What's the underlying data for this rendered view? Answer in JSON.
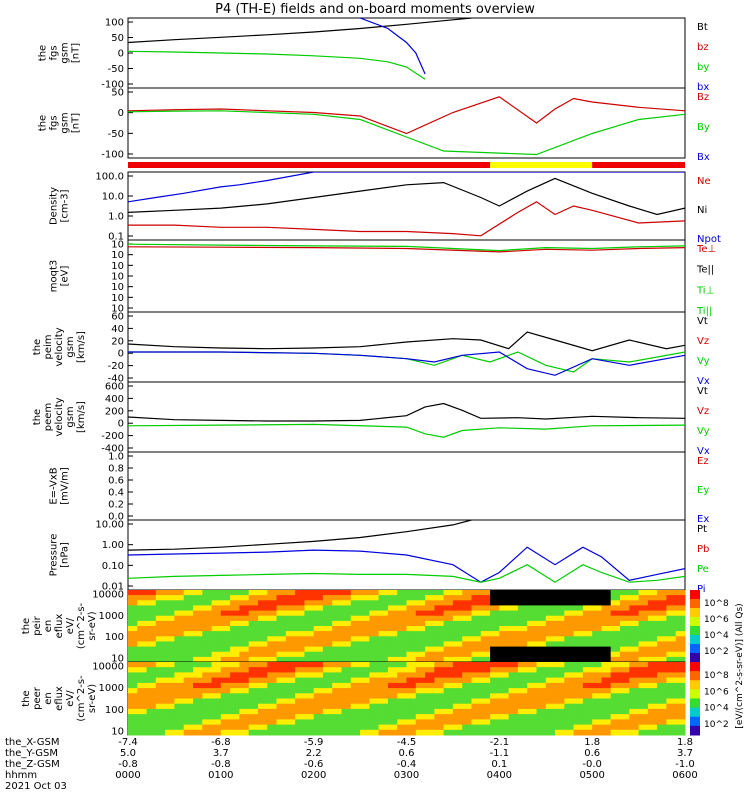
{
  "title": "P4 (TH-E) fields and on-board moments overview",
  "colors": {
    "black": "#000000",
    "red": "#cc0000",
    "green": "#00cc00",
    "blue": "#0000dd",
    "yellow": "#ffff00",
    "barred": "#ee0000"
  },
  "chart_data": [
    {
      "type": "line",
      "id": "fgs-gsm",
      "ylabel": [
        "the",
        "fgs",
        "gsm",
        "[nT]"
      ],
      "yticks": [
        "100",
        "50",
        "0",
        "-50",
        "-100"
      ],
      "ylim": [
        -100,
        100
      ],
      "legend": [
        {
          "name": "Bt",
          "color": "#000000"
        },
        {
          "name": "bz",
          "color": "#cc0000"
        },
        {
          "name": "by",
          "color": "#00cc00"
        },
        {
          "name": "bx",
          "color": "#0000dd"
        }
      ],
      "series": [
        {
          "name": "Bt",
          "x": [
            0,
            0.5,
            1,
            1.5,
            2,
            2.5,
            3,
            3.5,
            3.7
          ],
          "y": [
            30,
            38,
            45,
            52,
            60,
            70,
            82,
            95,
            100
          ]
        },
        {
          "name": "by",
          "x": [
            0,
            0.5,
            1,
            1.5,
            2,
            2.5,
            2.8,
            3.0,
            3.2
          ],
          "y": [
            5,
            3,
            0,
            -3,
            -8,
            -15,
            -25,
            -40,
            -75
          ]
        },
        {
          "name": "bx",
          "x": [
            2.5,
            2.8,
            3.0,
            3.1,
            3.2
          ],
          "y": [
            100,
            70,
            30,
            0,
            -60
          ]
        }
      ]
    },
    {
      "type": "line",
      "id": "fgs-gse",
      "ylabel": [
        "the",
        "fgs",
        "gsm",
        "[nT]"
      ],
      "yticks": [
        "50",
        "0",
        "-50",
        "-100"
      ],
      "ylim": [
        -130,
        70
      ],
      "legend": [
        {
          "name": "Bz",
          "color": "#cc0000"
        },
        {
          "name": "By",
          "color": "#00cc00"
        },
        {
          "name": "Bx",
          "color": "#0000dd"
        }
      ],
      "series": [
        {
          "name": "Bz",
          "x": [
            0,
            0.5,
            1,
            1.5,
            2,
            2.5,
            3,
            3.5,
            4,
            4.4,
            4.6,
            4.8,
            5,
            5.5,
            6
          ],
          "y": [
            5,
            8,
            10,
            5,
            0,
            -10,
            -60,
            0,
            45,
            -30,
            10,
            40,
            30,
            15,
            5
          ]
        },
        {
          "name": "By",
          "x": [
            0,
            0.5,
            1,
            1.5,
            2,
            2.5,
            3,
            3.4,
            4.4,
            5,
            5.5,
            6
          ],
          "y": [
            2,
            4,
            5,
            0,
            -5,
            -20,
            -70,
            -110,
            -120,
            -60,
            -20,
            -5
          ]
        }
      ]
    },
    {
      "type": "line",
      "id": "density",
      "ylabel": [
        "Density",
        "[cm-3]"
      ],
      "yticks": [
        "100.0",
        "10.0",
        "1.0",
        "0.1"
      ],
      "ylim": [
        -1,
        2.2
      ],
      "log": true,
      "legend": [
        {
          "name": "Ne",
          "color": "#cc0000"
        },
        {
          "name": "Ni",
          "color": "#000000"
        },
        {
          "name": "Npot",
          "color": "#0000dd"
        }
      ],
      "series": [
        {
          "name": "Ni",
          "x": [
            0,
            0.5,
            1,
            1.5,
            2,
            2.5,
            3,
            3.4,
            3.8,
            4,
            4.3,
            4.6,
            5,
            5.4,
            5.7,
            6
          ],
          "y": [
            0.3,
            0.4,
            0.5,
            0.7,
            1.0,
            1.3,
            1.6,
            1.7,
            1.0,
            0.6,
            1.3,
            1.9,
            1.2,
            0.6,
            0.2,
            0.5
          ]
        },
        {
          "name": "Ne",
          "x": [
            0,
            0.5,
            1,
            1.5,
            2,
            2.5,
            3,
            3.5,
            3.8,
            4.2,
            4.4,
            4.6,
            4.8,
            5,
            5.5,
            6
          ],
          "y": [
            -0.3,
            -0.3,
            -0.4,
            -0.4,
            -0.5,
            -0.6,
            -0.6,
            -0.7,
            -0.8,
            0.3,
            0.8,
            0.2,
            0.6,
            0.4,
            -0.2,
            -0.1
          ]
        },
        {
          "name": "Npot",
          "x": [
            0,
            0.3,
            0.6,
            1,
            1.2,
            1.5,
            2,
            6
          ],
          "y": [
            0.8,
            1.0,
            1.2,
            1.5,
            1.6,
            1.8,
            2.2,
            2.2
          ]
        }
      ]
    },
    {
      "type": "line",
      "id": "temperature",
      "ylabel": [
        "moqt3",
        "[eV]"
      ],
      "yticks": [
        "10",
        "10",
        "10",
        "10",
        "10",
        "10",
        "10"
      ],
      "ylim": [
        -14,
        3
      ],
      "legend": [
        {
          "name": "Te⊥",
          "color": "#cc0000"
        },
        {
          "name": "Te||",
          "color": "#000000"
        },
        {
          "name": "Ti⊥",
          "color": "#00cc00"
        },
        {
          "name": "Ti||",
          "color": "#00cc00"
        }
      ],
      "series": [
        {
          "name": "Ti",
          "x": [
            0,
            1,
            2,
            3,
            4,
            4.5,
            5,
            5.5,
            6
          ],
          "y": [
            2,
            1.8,
            1.6,
            1.5,
            0.5,
            1.2,
            1.0,
            1.4,
            1.6
          ]
        },
        {
          "name": "Te",
          "x": [
            0,
            1,
            2,
            3,
            4,
            4.5,
            5,
            5.5,
            6
          ],
          "y": [
            1.4,
            1.3,
            1.2,
            1.0,
            0.2,
            0.8,
            0.6,
            1.0,
            1.2
          ]
        }
      ]
    },
    {
      "type": "line",
      "id": "peim-velocity",
      "ylabel": [
        "the",
        "peim",
        "velocity",
        "gsm",
        "[km/s]"
      ],
      "yticks": [
        "60",
        "40",
        "20",
        "0",
        "-20",
        "-40"
      ],
      "ylim": [
        -45,
        60
      ],
      "legend": [
        {
          "name": "Vt",
          "color": "#000000"
        },
        {
          "name": "Vz",
          "color": "#cc0000"
        },
        {
          "name": "Vy",
          "color": "#00cc00"
        },
        {
          "name": "Vx",
          "color": "#0000dd"
        }
      ],
      "series": [
        {
          "name": "Vt",
          "x": [
            0,
            0.5,
            1,
            1.5,
            2,
            2.5,
            3,
            3.5,
            3.8,
            4.1,
            4.3,
            4.6,
            5,
            5.4,
            5.8,
            6
          ],
          "y": [
            12,
            8,
            6,
            5,
            6,
            8,
            15,
            20,
            18,
            5,
            30,
            18,
            2,
            18,
            5,
            10
          ]
        },
        {
          "name": "Vy",
          "x": [
            0,
            1,
            2,
            2.5,
            3,
            3.3,
            3.6,
            3.9,
            4.2,
            4.5,
            4.8,
            5,
            5.4,
            6
          ],
          "y": [
            0,
            0,
            -2,
            -5,
            -10,
            -20,
            -5,
            -15,
            0,
            -20,
            -30,
            -10,
            -15,
            0
          ]
        },
        {
          "name": "Vx",
          "x": [
            0,
            1,
            2,
            2.5,
            3,
            3.3,
            3.6,
            4,
            4.3,
            4.6,
            5,
            5.4,
            6
          ],
          "y": [
            0,
            0,
            -2,
            -5,
            -10,
            -15,
            -5,
            0,
            -25,
            -35,
            -10,
            -20,
            -5
          ]
        }
      ]
    },
    {
      "type": "line",
      "id": "peem-velocity",
      "ylabel": [
        "the",
        "peem",
        "velocity",
        "gsm",
        "[km/s]"
      ],
      "yticks": [
        "600",
        "400",
        "200",
        "0",
        "-200",
        "-400"
      ],
      "ylim": [
        -420,
        620
      ],
      "legend": [
        {
          "name": "Vt",
          "color": "#000000"
        },
        {
          "name": "Vz",
          "color": "#cc0000"
        },
        {
          "name": "Vy",
          "color": "#00cc00"
        },
        {
          "name": "Vx",
          "color": "#0000dd"
        }
      ],
      "series": [
        {
          "name": "Vt",
          "x": [
            0,
            0.5,
            1,
            1.5,
            2,
            2.5,
            3,
            3.2,
            3.4,
            3.6,
            3.8,
            4.2,
            4.5,
            5,
            5.5,
            6
          ],
          "y": [
            100,
            60,
            50,
            40,
            40,
            50,
            120,
            250,
            300,
            200,
            80,
            90,
            70,
            110,
            90,
            80
          ]
        },
        {
          "name": "Vy",
          "x": [
            0,
            1,
            2,
            3,
            3.2,
            3.4,
            3.6,
            4,
            4.5,
            5,
            6
          ],
          "y": [
            -30,
            -20,
            -10,
            -50,
            -150,
            -200,
            -100,
            -60,
            -80,
            -30,
            -20
          ]
        }
      ]
    },
    {
      "type": "line",
      "id": "efield",
      "ylabel": [
        "E=-VxB",
        "[mV/m]"
      ],
      "yticks": [
        "1.0",
        "0.8",
        "0.6",
        "0.4",
        "0.2",
        "0.0"
      ],
      "ylim": [
        0,
        1
      ],
      "legend": [
        {
          "name": "Ez",
          "color": "#cc0000"
        },
        {
          "name": "Ey",
          "color": "#00cc00"
        },
        {
          "name": "Ex",
          "color": "#0000dd"
        }
      ],
      "series": []
    },
    {
      "type": "line",
      "id": "pressure",
      "ylabel": [
        "Pressure",
        "[nPa]"
      ],
      "yticks": [
        "10.00",
        "1.00",
        "0.10",
        "0.01"
      ],
      "ylim": [
        -2.3,
        1.3
      ],
      "log": true,
      "legend": [
        {
          "name": "Pt",
          "color": "#000000"
        },
        {
          "name": "Pb",
          "color": "#cc0000"
        },
        {
          "name": "Pe",
          "color": "#00cc00"
        },
        {
          "name": "Pi",
          "color": "#0000dd"
        }
      ],
      "series": [
        {
          "name": "Pt",
          "x": [
            0,
            0.5,
            1,
            1.5,
            2,
            2.5,
            3,
            3.5,
            3.7
          ],
          "y": [
            -0.25,
            -0.2,
            -0.1,
            0.05,
            0.2,
            0.4,
            0.7,
            1.05,
            1.3
          ]
        },
        {
          "name": "Pi",
          "x": [
            0,
            0.5,
            1,
            1.5,
            2,
            2.5,
            3,
            3.5,
            3.8,
            4,
            4.3,
            4.6,
            4.9,
            5.1,
            5.4,
            5.7,
            6
          ],
          "y": [
            -0.5,
            -0.45,
            -0.4,
            -0.35,
            -0.25,
            -0.3,
            -0.5,
            -1.0,
            -1.9,
            -1.4,
            -0.1,
            -1.0,
            -0.1,
            -0.6,
            -1.8,
            -1.5,
            -1.2
          ]
        },
        {
          "name": "Pe",
          "x": [
            0,
            0.5,
            1,
            1.5,
            2,
            2.5,
            3,
            3.5,
            3.8,
            4,
            4.3,
            4.6,
            4.9,
            5.1,
            5.4,
            5.7,
            6
          ],
          "y": [
            -1.7,
            -1.6,
            -1.55,
            -1.5,
            -1.45,
            -1.5,
            -1.5,
            -1.6,
            -1.9,
            -1.7,
            -1.0,
            -1.9,
            -1.0,
            -1.4,
            -1.9,
            -1.8,
            -1.6
          ]
        }
      ]
    },
    {
      "type": "heatmap",
      "id": "peir-en-eflux",
      "ylabel": [
        "the",
        "peir",
        "en",
        "eflux",
        "eV/",
        "(cm^2-s-",
        "sr-eV)"
      ],
      "yticks": [
        "10000",
        "1000",
        "100",
        "10"
      ],
      "colorbar": {
        "label": "[eV/(cm^2-s-sr-eV)] (All Qs)",
        "ticks": [
          "10^8",
          "10^6",
          "10^4",
          "10^2"
        ]
      }
    },
    {
      "type": "heatmap",
      "id": "peer-en-eflux",
      "ylabel": [
        "the",
        "peer",
        "en",
        "eflux",
        "eV/",
        "(cm^2-s-",
        "sr-eV)"
      ],
      "yticks": [
        "10000",
        "1000",
        "100",
        "10"
      ],
      "colorbar": {
        "ticks": [
          "10^8",
          "10^6",
          "10^4",
          "10^2"
        ]
      }
    }
  ],
  "xaxis": {
    "rows": [
      {
        "label": "the_X-GSM",
        "values": [
          "-7.4",
          "-6.8",
          "-5.9",
          "-4.5",
          "-2.1",
          "1.8",
          "1.8"
        ]
      },
      {
        "label": "the_Y-GSM",
        "values": [
          "5.0",
          "3.7",
          "2.2",
          "0.6",
          "-1.1",
          "0.6",
          "3.7"
        ]
      },
      {
        "label": "the_Z-GSM",
        "values": [
          "-0.8",
          "-0.8",
          "-0.6",
          "-0.4",
          "0.1",
          "-0.0",
          "-1.0"
        ]
      },
      {
        "label": "hhmm",
        "values": [
          "0000",
          "0100",
          "0200",
          "0300",
          "0400",
          "0500",
          "0600"
        ]
      }
    ],
    "date": "2021 Oct 03"
  }
}
